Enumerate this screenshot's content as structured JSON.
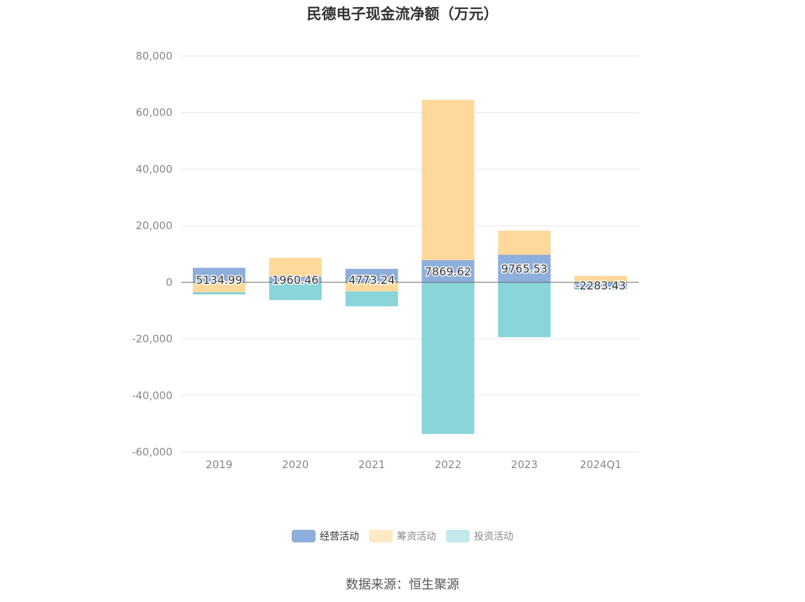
{
  "chart_data": {
    "type": "bar",
    "stacked": true,
    "title": "民德电子现金流净额（万元）",
    "categories": [
      "2019",
      "2020",
      "2021",
      "2022",
      "2023",
      "2024Q1"
    ],
    "ylim": [
      -60000,
      80000
    ],
    "yticks": [
      80000,
      60000,
      40000,
      20000,
      0,
      -20000,
      -40000,
      -60000
    ],
    "ytick_labels": [
      "80,000",
      "60,000",
      "40,000",
      "20,000",
      "0",
      "-20,000",
      "-40,000",
      "-60,000"
    ],
    "grid": true,
    "legend_position": "bottom",
    "series": [
      {
        "name": "经营活动",
        "color": "#8eaedb",
        "values": [
          5134.99,
          1960.46,
          4773.24,
          7869.62,
          9765.53,
          -2283.43
        ]
      },
      {
        "name": "筹资活动",
        "color": "#ffd89b",
        "values": [
          -3500,
          6700,
          -3200,
          56700,
          8500,
          2300
        ]
      },
      {
        "name": "投资活动",
        "color": "#89d5d9",
        "values": [
          -800,
          -6300,
          -5300,
          -53600,
          -19400,
          -300
        ]
      }
    ],
    "data_labels": [
      "5134.99",
      "1960.46",
      "4773.24",
      "7869.62",
      "9765.53",
      "-2283.43"
    ]
  },
  "legend": [
    {
      "label": "经营活动",
      "color": "#8eaedb",
      "active": true
    },
    {
      "label": "筹资活动",
      "color": "#ffe9c4",
      "active": false
    },
    {
      "label": "投资活动",
      "color": "#c2e9eb",
      "active": false
    }
  ],
  "source": "数据来源：恒生聚源"
}
